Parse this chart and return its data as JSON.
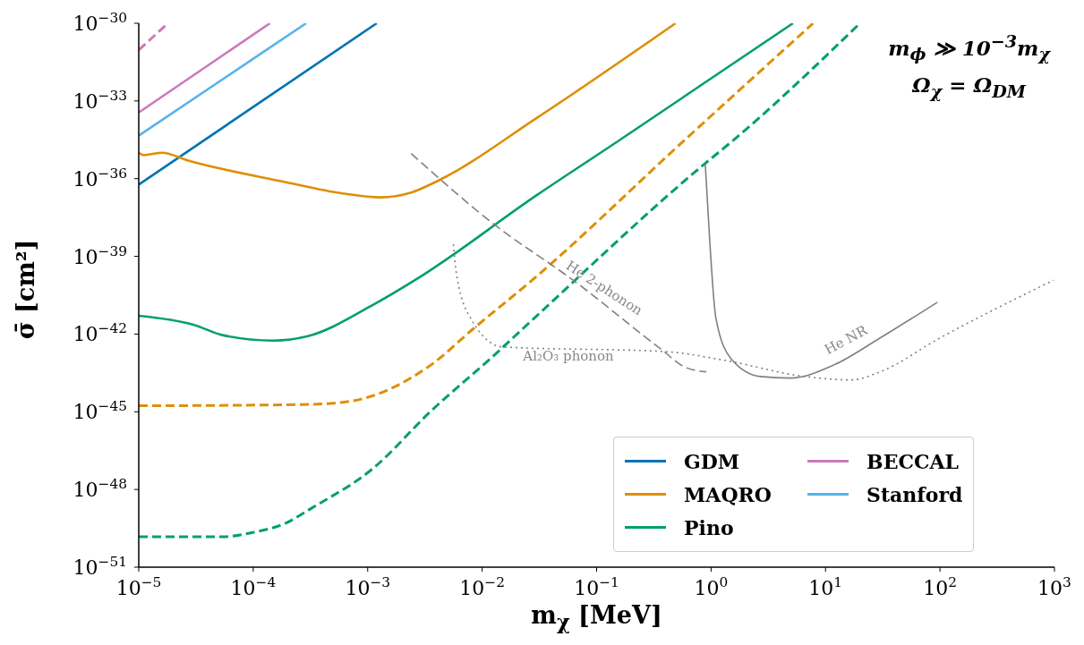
{
  "chart_data": {
    "type": "line",
    "xlabel": "m$_{χ}$ [MeV]",
    "ylabel": "σ̄ [cm²]",
    "log": "xy",
    "grid": false,
    "legend": "bottom right",
    "xlim": [
      1e-05,
      1000
    ],
    "ylim": [
      1e-51,
      1e-30
    ],
    "xticks": [
      {
        "value": 1e-05,
        "label": "10$^{−5}$"
      },
      {
        "value": 0.0001,
        "label": "10$^{−4}$"
      },
      {
        "value": 0.001,
        "label": "10$^{−3}$"
      },
      {
        "value": 0.01,
        "label": "10$^{−2}$"
      },
      {
        "value": 0.1,
        "label": "10$^{−1}$"
      },
      {
        "value": 1,
        "label": "10$^{0}$"
      },
      {
        "value": 10,
        "label": "10$^{1}$"
      },
      {
        "value": 100,
        "label": "10$^{2}$"
      },
      {
        "value": 1000,
        "label": "10$^{3}$"
      }
    ],
    "yticks": [
      {
        "value": 1e-51,
        "label": "10$^{−51}$"
      },
      {
        "value": 1e-48,
        "label": "10$^{−48}$"
      },
      {
        "value": 1e-45,
        "label": "10$^{−45}$"
      },
      {
        "value": 1e-42,
        "label": "10$^{−42}$"
      },
      {
        "value": 1e-39,
        "label": "10$^{−39}$"
      },
      {
        "value": 1e-36,
        "label": "10$^{−36}$"
      },
      {
        "value": 1e-33,
        "label": "10$^{−33}$"
      },
      {
        "value": 1e-30,
        "label": "10$^{−30}$"
      }
    ],
    "series": [
      {
        "name": "GDM",
        "color": "#0173b2",
        "line_style": "solid",
        "x": [
          1e-05,
          0.0012
        ],
        "values": [
          5.9e-37,
          1e-30
        ]
      },
      {
        "name": "MAQRO",
        "color": "#de8f05",
        "line_style": "solid",
        "x": [
          1e-05,
          1.1e-05,
          1.6e-05,
          2.7e-05,
          0.00019,
          0.0006,
          0.0013,
          0.0024,
          0.0042,
          0.03,
          0.49
        ],
        "values": [
          1e-35,
          8.1e-36,
          1e-35,
          5e-36,
          7.4e-37,
          2.7e-37,
          1.9e-37,
          2.9e-37,
          8.7e-37,
          2.2e-34,
          1e-30
        ]
      },
      {
        "name": "Pino",
        "color": "#029e73",
        "line_style": "solid",
        "x": [
          1e-05,
          3e-05,
          5.5e-05,
          0.00015,
          0.0003,
          0.0011,
          0.0028,
          0.03,
          0.15,
          5.2
        ],
        "values": [
          5.1e-42,
          2.3e-42,
          8.9e-43,
          5.6e-43,
          8.3e-43,
          1.3e-41,
          1.5e-40,
          2.3e-37,
          2.6e-35,
          1e-30
        ]
      },
      {
        "name": "BECCAL",
        "color": "#cc78bc",
        "line_style": "solid",
        "x": [
          1e-05,
          0.00014
        ],
        "values": [
          3.6e-34,
          1e-30
        ]
      },
      {
        "name": "Stanford",
        "color": "#56b4e9",
        "line_style": "solid",
        "x": [
          1e-05,
          0.00029
        ],
        "values": [
          4.6e-35,
          1e-30
        ]
      },
      {
        "color": "#de8f05",
        "line_style": "dashed",
        "x": [
          1e-05,
          0.00026,
          0.0006,
          0.0011,
          0.002,
          0.0036,
          0.0085,
          0.029,
          0.54,
          7.8
        ],
        "values": [
          1.7e-45,
          1.9e-45,
          2.3e-45,
          4.1e-45,
          1.3e-44,
          6.6e-44,
          1.7e-42,
          1.5e-40,
          2.2e-35,
          1e-30
        ]
      },
      {
        "color": "#029e73",
        "line_style": "dashed",
        "x": [
          1e-05,
          5.5e-05,
          0.0001,
          0.00019,
          0.00033,
          0.0011,
          0.0036,
          0.012,
          0.029,
          0.87,
          1.5,
          20
        ],
        "values": [
          1.5e-50,
          1.5e-50,
          2.2e-50,
          4.9e-50,
          2e-49,
          6.2e-48,
          1.1e-45,
          1.2e-43,
          4.4e-42,
          3.6e-36,
          2.6e-35,
          1e-30
        ]
      },
      {
        "color": "#cc78bc",
        "line_style": "dashed",
        "x": [
          1e-05,
          1.8e-05
        ],
        "values": [
          9.3e-32,
          1e-30
        ]
      },
      {
        "color": "#808080",
        "line_style": "dashed",
        "x": [
          0.0024,
          0.012,
          0.066,
          0.37,
          0.6,
          0.91
        ],
        "values": [
          9.3e-36,
          2.1e-38,
          1e-40,
          2.5e-43,
          5.1e-44,
          3.5e-44
        ]
      },
      {
        "color": "#808080",
        "line_style": "dotted",
        "x": [
          0.0056,
          0.006,
          0.0081,
          0.015,
          0.4,
          1.3,
          6.6,
          17,
          30,
          100,
          980
        ],
        "values": [
          2.9e-39,
          1.8e-40,
          3.5e-42,
          3.2e-43,
          2.1e-43,
          9.8e-44,
          2.3e-44,
          1.7e-44,
          3.5e-44,
          7.1e-43,
          1.2e-40
        ]
      },
      {
        "color": "#808080",
        "line_style": "solid",
        "x": [
          0.89,
          0.98,
          1.1,
          1.5,
          2.7,
          4.9,
          12,
          30,
          95
        ],
        "values": [
          3.6e-36,
          2.5e-39,
          4.4e-42,
          1.1e-43,
          2.3e-44,
          2e-44,
          6.6e-44,
          7.1e-43,
          1.7e-41
        ]
      }
    ],
    "annotations": [
      "m$_{ϕ}$ ≫ 10$^{−3}$m$_{χ}$",
      "Ω$_{χ}$ = Ω$_{DM}$",
      "He 2-phonon",
      "Al₂O₃ phonon",
      "He NR"
    ]
  }
}
